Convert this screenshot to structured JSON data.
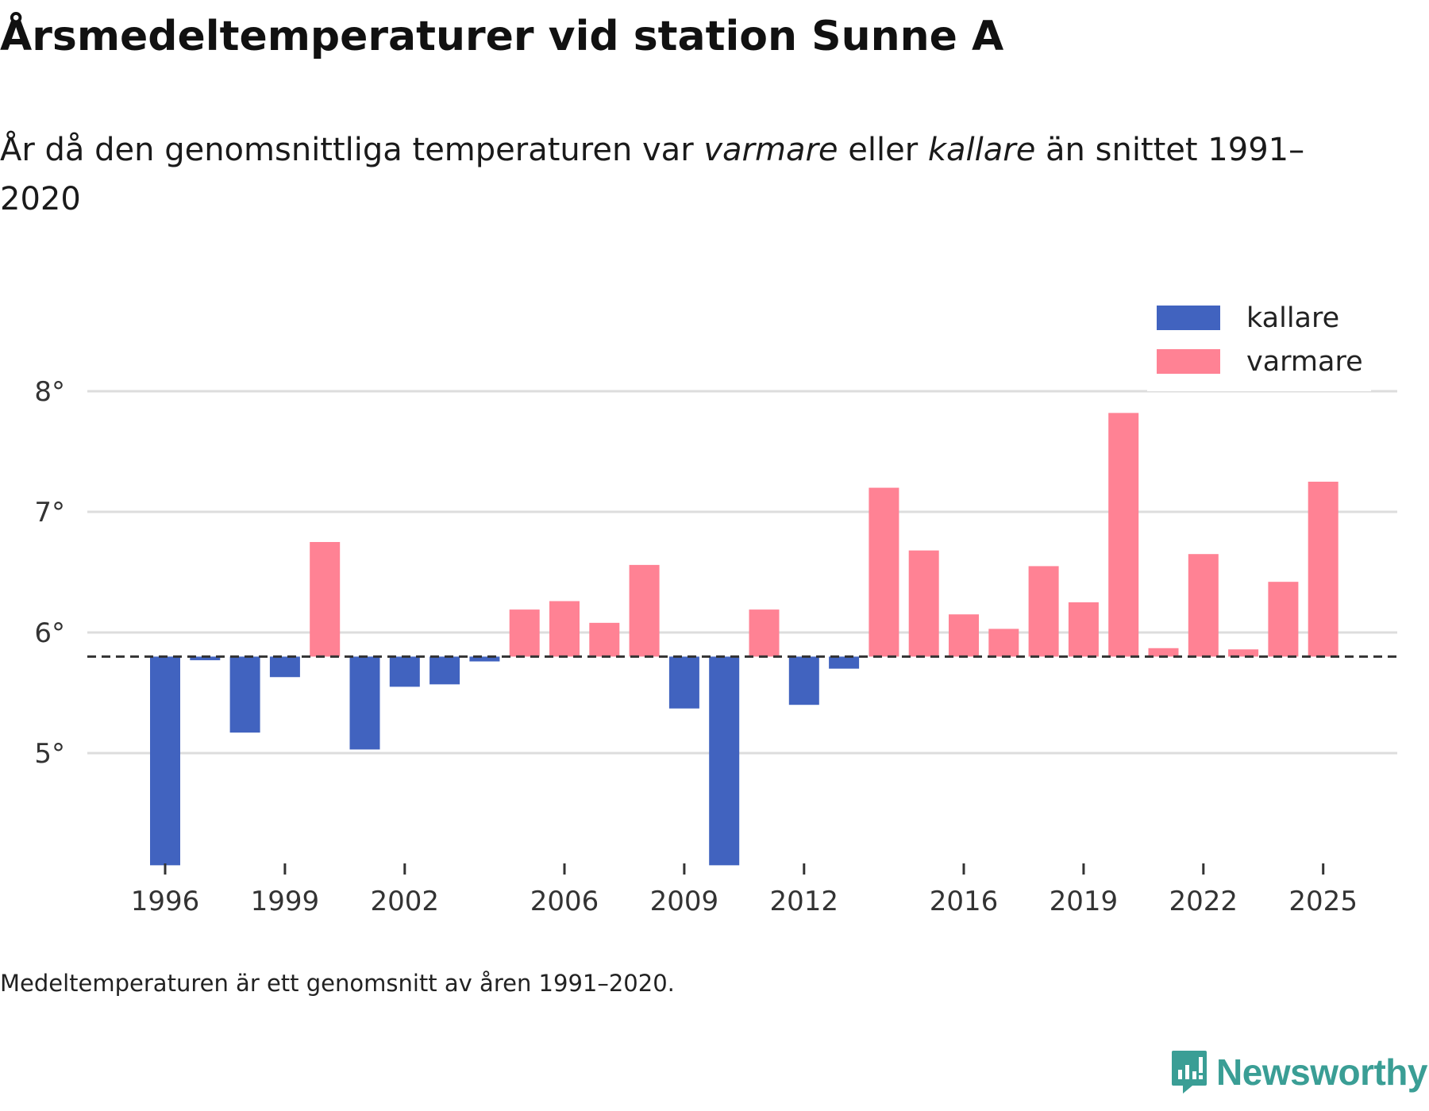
{
  "title": "Årsmedeltemperaturer vid station Sunne A",
  "subtitle": {
    "part1": "År då den genomsnittliga temperaturen var ",
    "warmer": "varmare",
    "part2": " eller ",
    "colder": "kallare",
    "part3": " än snittet 1991–2020"
  },
  "footnote": "Medeltemperaturen är ett genomsnitt av åren 1991–2020.",
  "brand": "Newsworthy",
  "colors": {
    "colder": "#4163bf",
    "warmer": "#ff8294",
    "grid": "#dddddd",
    "baseline": "#333333",
    "brand": "#3a9e95"
  },
  "chart_data": {
    "type": "bar",
    "title": "Årsmedeltemperaturer vid station Sunne A",
    "baseline": 5.8,
    "baseline_label": "snittet 1991–2020",
    "ylim": [
      4.05,
      8.1
    ],
    "yticks": [
      5,
      6,
      7,
      8
    ],
    "ytick_labels": [
      "5°",
      "6°",
      "7°",
      "8°"
    ],
    "xticks": [
      1996,
      1999,
      2002,
      2006,
      2009,
      2012,
      2016,
      2019,
      2022,
      2025
    ],
    "legend": {
      "position": "top-right",
      "entries": [
        {
          "name": "kallare",
          "color": "#4163bf"
        },
        {
          "name": "varmare",
          "color": "#ff8294"
        }
      ]
    },
    "categories": [
      1996,
      1997,
      1998,
      1999,
      2000,
      2001,
      2002,
      2003,
      2004,
      2005,
      2006,
      2007,
      2008,
      2009,
      2010,
      2011,
      2012,
      2013,
      2014,
      2015,
      2016,
      2017,
      2018,
      2019,
      2020,
      2021,
      2022,
      2023,
      2024,
      2025
    ],
    "values": [
      4.07,
      5.77,
      5.17,
      5.63,
      6.75,
      5.03,
      5.55,
      5.57,
      5.76,
      6.19,
      6.26,
      6.08,
      6.56,
      5.37,
      4.07,
      6.19,
      5.4,
      5.7,
      7.2,
      6.68,
      6.15,
      6.03,
      6.55,
      6.25,
      7.82,
      5.87,
      6.65,
      5.86,
      6.42,
      7.25
    ]
  }
}
